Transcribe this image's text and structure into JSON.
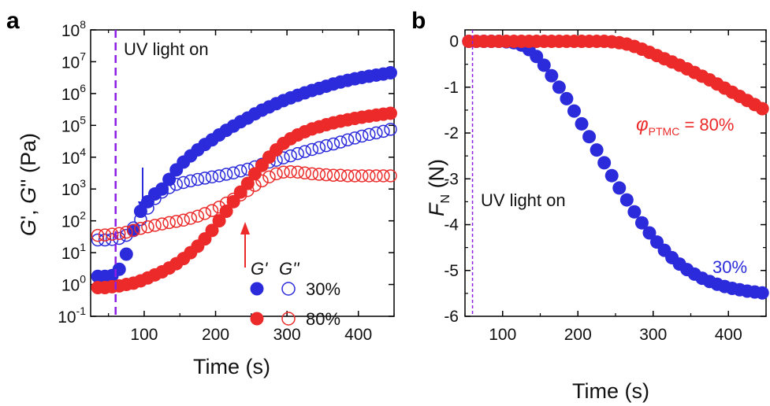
{
  "chart_data": [
    {
      "panel": "a",
      "type": "scatter",
      "xlabel": "Time (s)",
      "ylabel": "G', G'' (Pa)",
      "yscale": "log",
      "xlim": [
        25,
        450
      ],
      "ylim": [
        0.1,
        100000000
      ],
      "xticks": [
        "100",
        "200",
        "300",
        "400"
      ],
      "ytick_exponents": [
        "-1",
        "0",
        "1",
        "2",
        "3",
        "4",
        "5",
        "6",
        "7",
        "8"
      ],
      "ytick_base": "10",
      "annotation": "UV light on",
      "uv_time": 60,
      "legend": {
        "g1": "G'",
        "g2": "G''",
        "s1": "30%",
        "s2": "80%"
      },
      "series": [
        {
          "name": "G' 30%",
          "color": "#2b2bdc",
          "marker": "filled",
          "x": [
            35,
            45,
            55,
            65,
            75,
            85,
            95,
            105,
            115,
            125,
            135,
            145,
            155,
            165,
            175,
            185,
            195,
            205,
            215,
            225,
            235,
            245,
            255,
            265,
            275,
            285,
            295,
            305,
            315,
            325,
            335,
            345,
            355,
            365,
            375,
            385,
            395,
            405,
            415,
            425,
            435,
            445
          ],
          "y": [
            1.8,
            1.8,
            1.9,
            3,
            9,
            50,
            200,
            400,
            700,
            1000,
            2000,
            4000,
            7000,
            11000,
            17000,
            25000,
            35000,
            50000,
            70000,
            95000,
            130000,
            170000,
            230000,
            300000,
            380000,
            480000,
            600000,
            730000,
            880000,
            1050000,
            1250000,
            1450000,
            1700000,
            2000000,
            2300000,
            2600000,
            2900000,
            3200000,
            3500000,
            3800000,
            4100000,
            4500000
          ]
        },
        {
          "name": "G'' 30%",
          "color": "#2b2bdc",
          "marker": "open",
          "x": [
            35,
            45,
            55,
            65,
            75,
            85,
            95,
            105,
            115,
            125,
            135,
            145,
            155,
            165,
            175,
            185,
            195,
            205,
            215,
            225,
            235,
            245,
            255,
            265,
            275,
            285,
            295,
            305,
            315,
            325,
            335,
            345,
            355,
            365,
            375,
            385,
            395,
            405,
            415,
            425,
            435,
            445
          ],
          "y": [
            25,
            25,
            26,
            28,
            35,
            60,
            110,
            250,
            500,
            800,
            1100,
            1400,
            1600,
            1800,
            2000,
            2200,
            2400,
            2600,
            2900,
            3200,
            3700,
            4200,
            5000,
            6000,
            7000,
            8000,
            9500,
            11000,
            13000,
            15000,
            17500,
            20000,
            23000,
            26000,
            30000,
            35000,
            40000,
            46000,
            52000,
            58000,
            65000,
            75000
          ]
        },
        {
          "name": "G' 80%",
          "color": "#ec2a2a",
          "marker": "filled",
          "x": [
            35,
            45,
            55,
            65,
            75,
            85,
            95,
            105,
            115,
            125,
            135,
            145,
            155,
            165,
            175,
            185,
            195,
            205,
            215,
            225,
            235,
            245,
            255,
            265,
            275,
            285,
            295,
            305,
            315,
            325,
            335,
            345,
            355,
            365,
            375,
            385,
            395,
            405,
            415,
            425,
            435,
            445
          ],
          "y": [
            0.8,
            0.8,
            0.85,
            0.9,
            1.0,
            1.1,
            1.3,
            1.6,
            2.0,
            2.5,
            3.3,
            4.5,
            6.5,
            10,
            16,
            27,
            50,
            100,
            200,
            400,
            800,
            1500,
            3000,
            5500,
            10000,
            17000,
            27000,
            38000,
            50000,
            63000,
            77000,
            90000,
            105000,
            120000,
            135000,
            150000,
            165000,
            180000,
            195000,
            210000,
            225000,
            240000
          ]
        },
        {
          "name": "G'' 80%",
          "color": "#ec2a2a",
          "marker": "open",
          "x": [
            35,
            45,
            55,
            65,
            75,
            85,
            95,
            105,
            115,
            125,
            135,
            145,
            155,
            165,
            175,
            185,
            195,
            205,
            215,
            225,
            235,
            245,
            255,
            265,
            275,
            285,
            295,
            305,
            315,
            325,
            335,
            345,
            355,
            365,
            375,
            385,
            395,
            405,
            415,
            425,
            435,
            445
          ],
          "y": [
            35,
            36,
            38,
            40,
            44,
            50,
            58,
            65,
            72,
            80,
            88,
            96,
            105,
            120,
            140,
            170,
            210,
            270,
            360,
            480,
            650,
            900,
            1300,
            1800,
            2400,
            3000,
            3400,
            3500,
            3400,
            3200,
            3000,
            2900,
            2800,
            2700,
            2700,
            2600,
            2600,
            2600,
            2600,
            2600,
            2600,
            2600
          ]
        }
      ]
    },
    {
      "panel": "b",
      "type": "scatter",
      "xlabel": "Time (s)",
      "ylabel": "FN (N)",
      "xlim": [
        50,
        450
      ],
      "ylim": [
        -6,
        0.25
      ],
      "xticks": [
        "100",
        "200",
        "300",
        "400"
      ],
      "yticks": [
        "0",
        "-1",
        "-2",
        "-3",
        "-4",
        "-5",
        "-6"
      ],
      "annotation": "UV light on",
      "uv_time": 60,
      "label_30": "30%",
      "label_80_phi": "φ",
      "label_80_sub": "PTMC",
      "label_80_val": " = 80%",
      "series": [
        {
          "name": "30%",
          "color": "#2b2bdc",
          "marker": "filled",
          "x": [
            55,
            65,
            75,
            85,
            95,
            105,
            115,
            125,
            135,
            145,
            155,
            165,
            175,
            185,
            195,
            205,
            215,
            225,
            235,
            245,
            255,
            265,
            275,
            285,
            295,
            305,
            315,
            325,
            335,
            345,
            355,
            365,
            375,
            385,
            395,
            405,
            415,
            425,
            435,
            445
          ],
          "y": [
            0,
            0,
            0,
            0,
            0,
            -0.01,
            -0.03,
            -0.08,
            -0.18,
            -0.33,
            -0.52,
            -0.75,
            -1.0,
            -1.25,
            -1.52,
            -1.8,
            -2.08,
            -2.37,
            -2.65,
            -2.93,
            -3.2,
            -3.46,
            -3.72,
            -3.96,
            -4.18,
            -4.38,
            -4.56,
            -4.72,
            -4.86,
            -4.98,
            -5.08,
            -5.17,
            -5.24,
            -5.3,
            -5.35,
            -5.39,
            -5.42,
            -5.45,
            -5.47,
            -5.49
          ]
        },
        {
          "name": "80%",
          "color": "#ec2a2a",
          "marker": "filled",
          "x": [
            55,
            65,
            75,
            85,
            95,
            105,
            115,
            125,
            135,
            145,
            155,
            165,
            175,
            185,
            195,
            205,
            215,
            225,
            235,
            245,
            255,
            265,
            275,
            285,
            295,
            305,
            315,
            325,
            335,
            345,
            355,
            365,
            375,
            385,
            395,
            405,
            415,
            425,
            435,
            445
          ],
          "y": [
            0,
            0,
            0,
            0,
            0,
            0,
            0,
            0,
            0,
            0,
            0,
            0,
            0,
            0,
            0,
            0,
            0,
            0,
            0,
            -0.01,
            -0.03,
            -0.06,
            -0.11,
            -0.17,
            -0.24,
            -0.31,
            -0.38,
            -0.45,
            -0.52,
            -0.6,
            -0.68,
            -0.76,
            -0.84,
            -0.93,
            -1.02,
            -1.11,
            -1.2,
            -1.29,
            -1.38,
            -1.47
          ]
        }
      ]
    }
  ]
}
